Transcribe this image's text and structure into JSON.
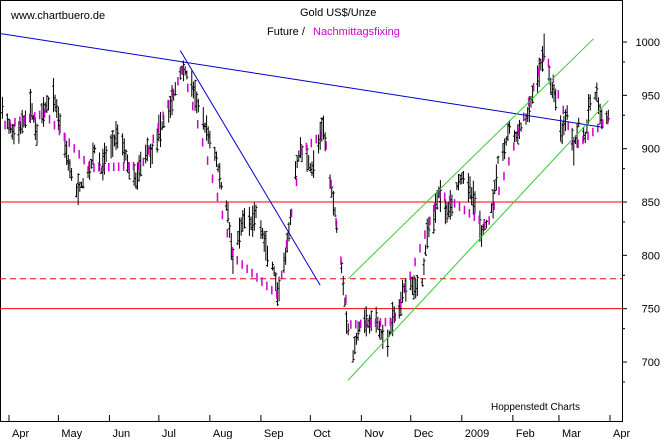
{
  "chart_data": {
    "type": "ohlc",
    "watermark": "www.chartbuero.de",
    "title": "Gold US$/Unze",
    "subtitle_black": "Future /",
    "subtitle_magenta": "Nachmittagsfixing",
    "source": "Hoppenstedt Charts",
    "x_tick_labels": [
      "Apr",
      "May",
      "Jun",
      "Jul",
      "Aug",
      "Sep",
      "Oct",
      "Nov",
      "Dec",
      "2009",
      "Feb",
      "Mar",
      "Apr"
    ],
    "y_tick_labels": [
      "700",
      "750",
      "800",
      "850",
      "900",
      "950",
      "1000"
    ],
    "ylim": [
      680,
      1010
    ],
    "xlim": [
      "2008-04-01",
      "2009-04-01"
    ],
    "grid": false,
    "colors": {
      "bars": "#000000",
      "fixing": "#cc00cc",
      "horizontal_lines": "#ff0000",
      "trend_lines": "#0000cc",
      "channel": "#33cc33"
    },
    "horizontal_lines": [
      {
        "value": 850,
        "style": "solid"
      },
      {
        "value": 778,
        "style": "dashed"
      },
      {
        "value": 750,
        "style": "solid"
      }
    ],
    "trend_lines": [
      {
        "from": [
          "2008-03-18",
          1010
        ],
        "to": [
          "2009-03-28",
          920
        ]
      },
      {
        "from": [
          "2008-07-14",
          992
        ],
        "to": [
          "2008-10-07",
          772
        ]
      }
    ],
    "channel_lines": [
      {
        "from": [
          "2008-10-24",
          778
        ],
        "to": [
          "2009-03-22",
          1003
        ]
      },
      {
        "from": [
          "2008-10-24",
          683
        ],
        "to": [
          "2009-03-31",
          945
        ]
      }
    ],
    "price_path": [
      [
        "2008-03-18",
        960
      ],
      [
        "2008-03-21",
        920
      ],
      [
        "2008-03-25",
        945
      ],
      [
        "2008-03-31",
        925
      ],
      [
        "2008-04-05",
        910
      ],
      [
        "2008-04-10",
        925
      ],
      [
        "2008-04-14",
        940
      ],
      [
        "2008-04-18",
        915
      ],
      [
        "2008-04-22",
        935
      ],
      [
        "2008-04-28",
        950
      ],
      [
        "2008-05-01",
        930
      ],
      [
        "2008-05-05",
        905
      ],
      [
        "2008-05-08",
        880
      ],
      [
        "2008-05-12",
        860
      ],
      [
        "2008-05-16",
        868
      ],
      [
        "2008-05-20",
        880
      ],
      [
        "2008-05-23",
        900
      ],
      [
        "2008-05-27",
        880
      ],
      [
        "2008-05-30",
        895
      ],
      [
        "2008-06-03",
        905
      ],
      [
        "2008-06-06",
        915
      ],
      [
        "2008-06-10",
        900
      ],
      [
        "2008-06-13",
        880
      ],
      [
        "2008-06-17",
        870
      ],
      [
        "2008-06-20",
        885
      ],
      [
        "2008-06-24",
        900
      ],
      [
        "2008-06-27",
        895
      ],
      [
        "2008-07-01",
        915
      ],
      [
        "2008-07-04",
        925
      ],
      [
        "2008-07-08",
        940
      ],
      [
        "2008-07-11",
        955
      ],
      [
        "2008-07-15",
        975
      ],
      [
        "2008-07-18",
        970
      ],
      [
        "2008-07-22",
        955
      ],
      [
        "2008-07-25",
        940
      ],
      [
        "2008-07-29",
        920
      ],
      [
        "2008-08-01",
        910
      ],
      [
        "2008-08-05",
        890
      ],
      [
        "2008-08-08",
        865
      ],
      [
        "2008-08-12",
        840
      ],
      [
        "2008-08-15",
        795
      ],
      [
        "2008-08-19",
        820
      ],
      [
        "2008-08-22",
        835
      ],
      [
        "2008-08-26",
        830
      ],
      [
        "2008-08-29",
        840
      ],
      [
        "2008-09-02",
        820
      ],
      [
        "2008-09-05",
        800
      ],
      [
        "2008-09-09",
        785
      ],
      [
        "2008-09-11",
        760
      ],
      [
        "2008-09-15",
        790
      ],
      [
        "2008-09-18",
        820
      ],
      [
        "2008-09-22",
        880
      ],
      [
        "2008-09-25",
        900
      ],
      [
        "2008-09-29",
        890
      ],
      [
        "2008-10-02",
        880
      ],
      [
        "2008-10-06",
        905
      ],
      [
        "2008-10-09",
        920
      ],
      [
        "2008-10-13",
        870
      ],
      [
        "2008-10-16",
        840
      ],
      [
        "2008-10-20",
        790
      ],
      [
        "2008-10-23",
        740
      ],
      [
        "2008-10-27",
        705
      ],
      [
        "2008-10-30",
        730
      ],
      [
        "2008-11-03",
        740
      ],
      [
        "2008-11-06",
        735
      ],
      [
        "2008-11-10",
        740
      ],
      [
        "2008-11-13",
        725
      ],
      [
        "2008-11-17",
        720
      ],
      [
        "2008-11-20",
        740
      ],
      [
        "2008-11-24",
        750
      ],
      [
        "2008-11-27",
        770
      ],
      [
        "2008-12-01",
        775
      ],
      [
        "2008-12-04",
        770
      ],
      [
        "2008-12-08",
        775
      ],
      [
        "2008-12-11",
        820
      ],
      [
        "2008-12-15",
        835
      ],
      [
        "2008-12-18",
        860
      ],
      [
        "2008-12-22",
        840
      ],
      [
        "2008-12-26",
        850
      ],
      [
        "2008-12-30",
        870
      ],
      [
        "2009-01-02",
        875
      ],
      [
        "2009-01-06",
        860
      ],
      [
        "2009-01-09",
        850
      ],
      [
        "2009-01-13",
        820
      ],
      [
        "2009-01-16",
        830
      ],
      [
        "2009-01-20",
        850
      ],
      [
        "2009-01-23",
        890
      ],
      [
        "2009-01-27",
        900
      ],
      [
        "2009-01-30",
        920
      ],
      [
        "2009-02-03",
        910
      ],
      [
        "2009-02-06",
        920
      ],
      [
        "2009-02-10",
        930
      ],
      [
        "2009-02-13",
        950
      ],
      [
        "2009-02-17",
        970
      ],
      [
        "2009-02-20",
        995
      ],
      [
        "2009-02-24",
        960
      ],
      [
        "2009-02-27",
        945
      ],
      [
        "2009-03-03",
        915
      ],
      [
        "2009-03-06",
        935
      ],
      [
        "2009-03-10",
        900
      ],
      [
        "2009-03-13",
        925
      ],
      [
        "2009-03-17",
        910
      ],
      [
        "2009-03-20",
        945
      ],
      [
        "2009-03-24",
        950
      ],
      [
        "2009-03-27",
        925
      ],
      [
        "2009-03-31",
        930
      ]
    ],
    "fixing_path": [
      [
        "2008-03-20",
        918
      ],
      [
        "2008-04-22",
        933
      ],
      [
        "2008-05-20",
        882
      ],
      [
        "2008-06-20",
        884
      ],
      [
        "2008-07-15",
        974
      ],
      [
        "2008-08-15",
        798
      ],
      [
        "2008-09-11",
        762
      ],
      [
        "2008-09-25",
        898
      ],
      [
        "2008-10-09",
        915
      ],
      [
        "2008-10-24",
        735
      ],
      [
        "2008-11-20",
        738
      ],
      [
        "2008-12-18",
        858
      ],
      [
        "2009-01-16",
        828
      ],
      [
        "2009-02-20",
        990
      ],
      [
        "2009-03-10",
        902
      ],
      [
        "2009-03-31",
        928
      ]
    ]
  }
}
